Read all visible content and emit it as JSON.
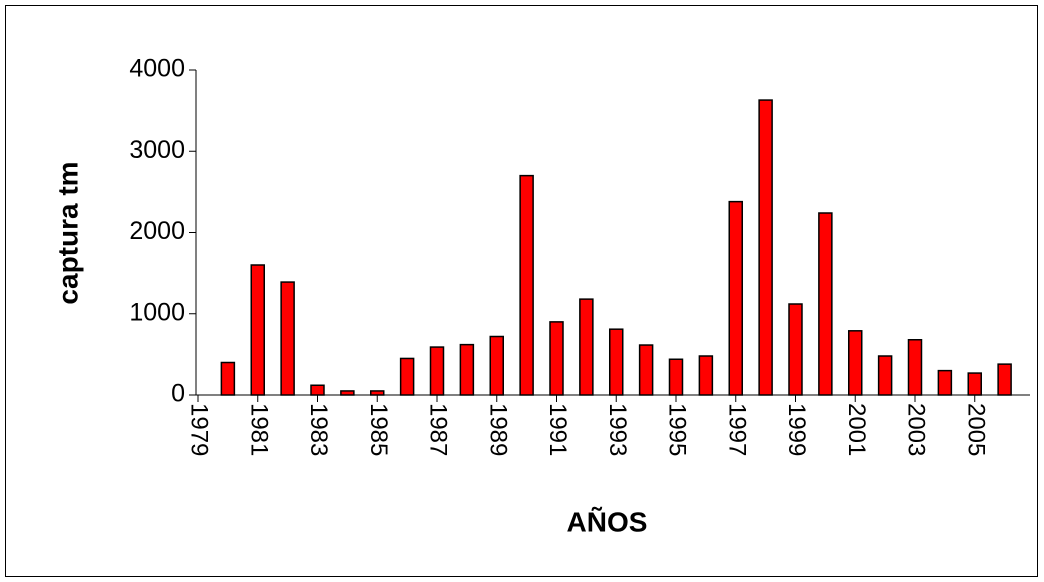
{
  "chart_data": {
    "type": "bar",
    "x_label": "AÑOS",
    "y_label": "captura tm",
    "categories": [
      "1979",
      null,
      "1981",
      null,
      "1983",
      null,
      "1985",
      null,
      "1987",
      null,
      "1989",
      null,
      "1991",
      null,
      "1993",
      null,
      "1995",
      null,
      "1997",
      null,
      "1999",
      null,
      "2001",
      null,
      "2003",
      null,
      "2005",
      null
    ],
    "values": [
      null,
      400,
      1600,
      1390,
      120,
      50,
      50,
      450,
      590,
      620,
      720,
      2700,
      900,
      1180,
      810,
      615,
      440,
      480,
      2380,
      3630,
      1120,
      2240,
      790,
      480,
      680,
      300,
      270,
      380
    ],
    "color": "#ff0000",
    "ylim": [
      0,
      4000
    ],
    "yticks": [
      0,
      1000,
      2000,
      3000,
      4000
    ],
    "grid": false
  }
}
